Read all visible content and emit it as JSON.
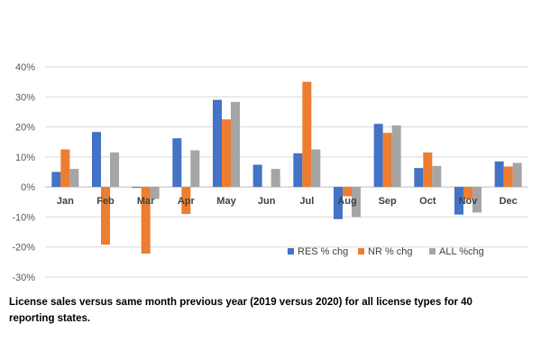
{
  "caption": "License sales versus same month previous year (2019 versus 2020) for all license types for 40 reporting states.",
  "chart_data": {
    "type": "bar",
    "title": "",
    "xlabel": "",
    "ylabel": "",
    "ylim": [
      -0.3,
      0.4
    ],
    "yticks": [
      -0.3,
      -0.2,
      -0.1,
      0,
      0.1,
      0.2,
      0.3,
      0.4
    ],
    "ytick_labels": [
      "-30%",
      "-20%",
      "-10%",
      "0%",
      "10%",
      "20%",
      "30%",
      "40%"
    ],
    "grid": true,
    "legend_position": "bottom-right",
    "categories": [
      "Jan",
      "Feb",
      "Mar",
      "Apr",
      "May",
      "Jun",
      "Jul",
      "Aug",
      "Sep",
      "Oct",
      "Nov",
      "Dec"
    ],
    "series": [
      {
        "name": "RES % chg",
        "color": "#4472C4",
        "values": [
          0.05,
          0.183,
          -0.003,
          0.162,
          0.29,
          0.074,
          0.112,
          -0.107,
          0.21,
          0.063,
          -0.092,
          0.085
        ]
      },
      {
        "name": "NR % chg",
        "color": "#ED7D31",
        "values": [
          0.125,
          -0.192,
          -0.222,
          -0.09,
          0.225,
          0.0,
          0.35,
          -0.031,
          0.18,
          0.115,
          -0.04,
          0.068
        ]
      },
      {
        "name": "ALL %chg",
        "color": "#A5A5A5",
        "values": [
          0.06,
          0.115,
          -0.04,
          0.122,
          0.283,
          0.06,
          0.125,
          -0.1,
          0.205,
          0.07,
          -0.085,
          0.08
        ]
      }
    ]
  }
}
